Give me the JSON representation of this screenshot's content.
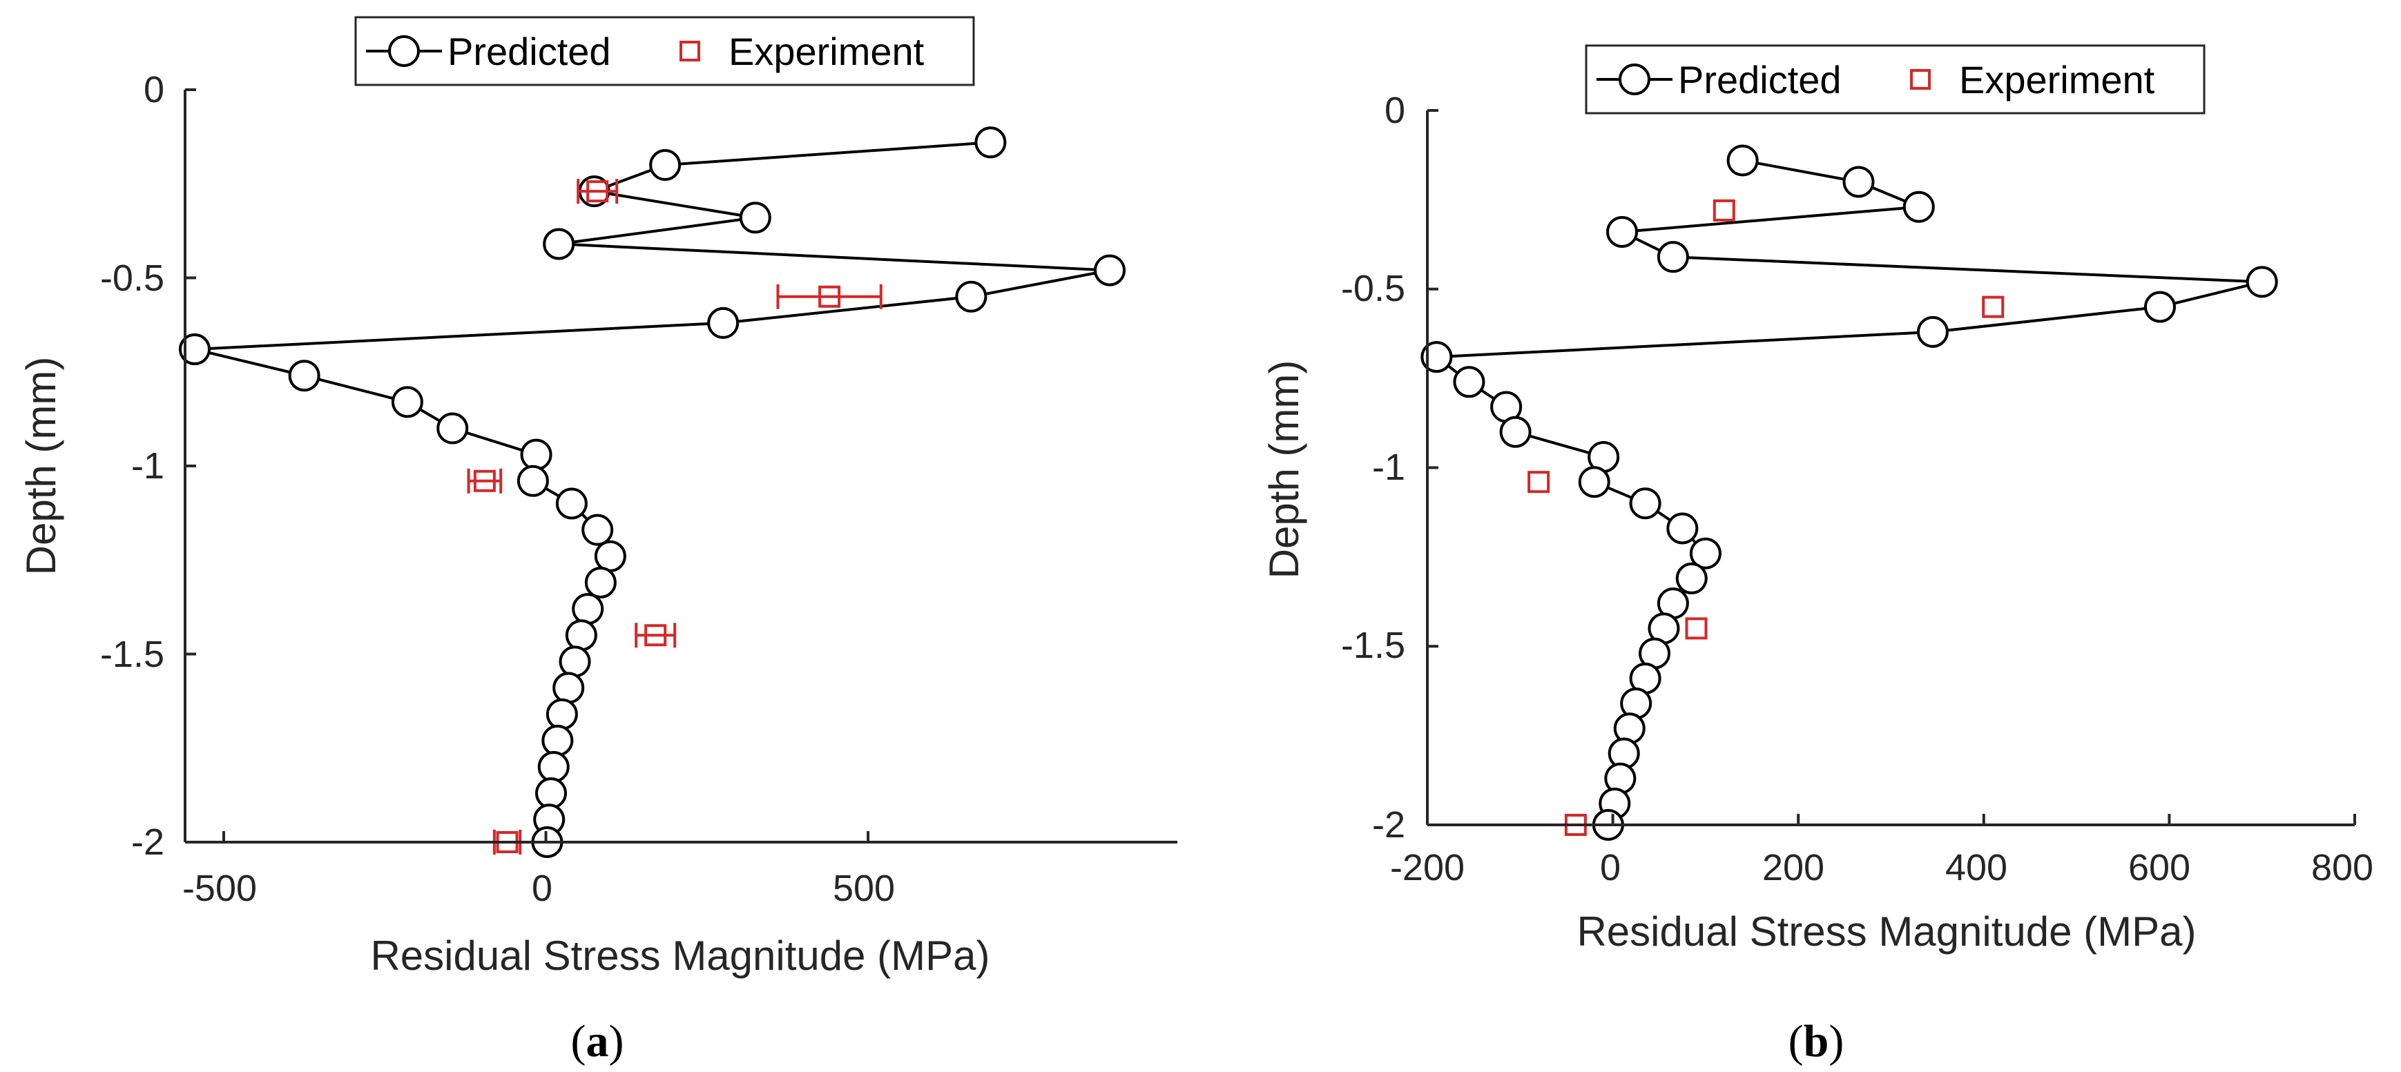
{
  "colors": {
    "predicted": "#000000",
    "experiment": "#d62728",
    "axis": "#262626"
  },
  "chart_data": [
    {
      "type": "line",
      "panel": "a",
      "caption": "a",
      "xlabel": "Residual Stress Magnitude (MPa)",
      "ylabel": "Depth (mm)",
      "xlim": [
        -560,
        980
      ],
      "ylim": [
        -2,
        0
      ],
      "xticks": [
        -500,
        0,
        500
      ],
      "xtick_labels": [
        "-500",
        "0",
        "500"
      ],
      "yticks": [
        0,
        -0.5,
        -1,
        -1.5,
        -2
      ],
      "ytick_labels": [
        "0",
        "-0.5",
        "-1",
        "-1.5",
        "-2"
      ],
      "legend": {
        "entries": [
          "Predicted",
          "Experiment"
        ],
        "location": "top-center"
      },
      "series": [
        {
          "name": "Predicted",
          "marker": "circle",
          "x": [
            690,
            185,
            75,
            325,
            20,
            875,
            660,
            275,
            -545,
            -375,
            -215,
            -145,
            -15,
            -20,
            40,
            80,
            100,
            85,
            65,
            55,
            45,
            35,
            25,
            18,
            12,
            8,
            5,
            2
          ],
          "y": [
            -0.14,
            -0.2,
            -0.27,
            -0.34,
            -0.41,
            -0.48,
            -0.55,
            -0.62,
            -0.69,
            -0.76,
            -0.83,
            -0.9,
            -0.97,
            -1.04,
            -1.1,
            -1.17,
            -1.24,
            -1.31,
            -1.38,
            -1.45,
            -1.52,
            -1.59,
            -1.66,
            -1.73,
            -1.8,
            -1.87,
            -1.94,
            -2.0
          ]
        },
        {
          "name": "Experiment",
          "marker": "square",
          "x": [
            80,
            440,
            -95,
            170,
            -60
          ],
          "y": [
            -0.27,
            -0.55,
            -1.04,
            -1.45,
            -2.0
          ],
          "xerr": [
            30,
            80,
            25,
            30,
            20
          ]
        }
      ]
    },
    {
      "type": "line",
      "panel": "b",
      "caption": "b",
      "xlabel": "Residual Stress Magnitude (MPa)",
      "ylabel": "Depth (mm)",
      "xlim": [
        -200,
        800
      ],
      "ylim": [
        -2,
        0
      ],
      "xticks": [
        -200,
        0,
        200,
        400,
        600,
        800
      ],
      "xtick_labels": [
        "-200",
        "0",
        "200",
        "400",
        "600",
        "800"
      ],
      "yticks": [
        0,
        -0.5,
        -1,
        -1.5,
        -2
      ],
      "ytick_labels": [
        "0",
        "-0.5",
        "-1",
        "-1.5",
        "-2"
      ],
      "legend": {
        "entries": [
          "Predicted",
          "Experiment"
        ],
        "location": "top-center"
      },
      "series": [
        {
          "name": "Predicted",
          "marker": "circle",
          "x": [
            140,
            265,
            330,
            10,
            65,
            700,
            590,
            345,
            -190,
            -155,
            -115,
            -105,
            -10,
            -20,
            35,
            75,
            100,
            85,
            65,
            55,
            45,
            35,
            25,
            18,
            12,
            8,
            2,
            -5
          ],
          "y": [
            -0.14,
            -0.2,
            -0.27,
            -0.34,
            -0.41,
            -0.48,
            -0.55,
            -0.62,
            -0.69,
            -0.76,
            -0.83,
            -0.9,
            -0.97,
            -1.04,
            -1.1,
            -1.17,
            -1.24,
            -1.31,
            -1.38,
            -1.45,
            -1.52,
            -1.59,
            -1.66,
            -1.73,
            -1.8,
            -1.87,
            -1.94,
            -2.0
          ]
        },
        {
          "name": "Experiment",
          "marker": "square",
          "x": [
            120,
            410,
            -80,
            90,
            -40
          ],
          "y": [
            -0.28,
            -0.55,
            -1.04,
            -1.45,
            -2.0
          ]
        }
      ]
    }
  ]
}
